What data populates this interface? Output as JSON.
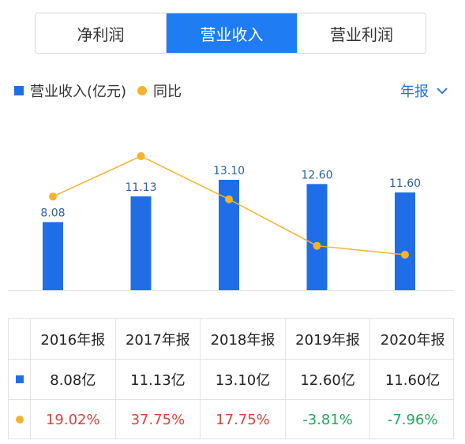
{
  "tabs": [
    {
      "label": "净利润",
      "active": false
    },
    {
      "label": "营业收入",
      "active": true
    },
    {
      "label": "营业利润",
      "active": false
    }
  ],
  "legend": {
    "bar_label": "营业收入(亿元)",
    "line_label": "同比"
  },
  "period_selector": {
    "label": "年报",
    "icon": "chevron-down-icon"
  },
  "colors": {
    "accent": "#1f7cf3",
    "bar": "#1f6ee8",
    "line": "#f5b22d",
    "positive": "#e0413b",
    "negative": "#1fa85e"
  },
  "chart_data": {
    "type": "bar",
    "categories": [
      "2016年报",
      "2017年报",
      "2018年报",
      "2019年报",
      "2020年报"
    ],
    "series": [
      {
        "name": "营业收入(亿元)",
        "type": "bar",
        "values": [
          8.08,
          11.13,
          13.1,
          12.6,
          11.6
        ],
        "labels": [
          "8.08",
          "11.13",
          "13.10",
          "12.60",
          "11.60"
        ]
      },
      {
        "name": "同比",
        "type": "line",
        "values": [
          19.02,
          37.75,
          17.75,
          -3.81,
          -7.96
        ]
      }
    ]
  },
  "table": {
    "headers": [
      "2016年报",
      "2017年报",
      "2018年报",
      "2019年报",
      "2020年报"
    ],
    "revenue_row": [
      "8.08亿",
      "11.13亿",
      "13.10亿",
      "12.60亿",
      "11.60亿"
    ],
    "yoy_row": [
      "19.02%",
      "37.75%",
      "17.75%",
      "-3.81%",
      "-7.96%"
    ]
  }
}
